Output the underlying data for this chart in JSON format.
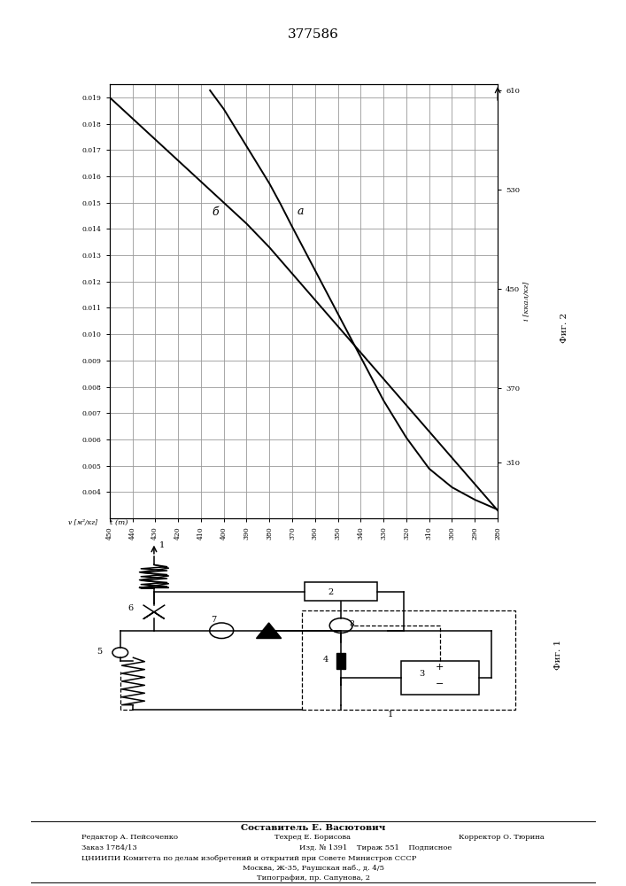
{
  "title": "377586",
  "graph": {
    "t_ticks": [
      450,
      440,
      430,
      420,
      410,
      400,
      390,
      380,
      370,
      360,
      350,
      340,
      330,
      320,
      310,
      300,
      290,
      280
    ],
    "v_ticks": [
      0.019,
      0.018,
      0.017,
      0.016,
      0.015,
      0.014,
      0.013,
      0.012,
      0.011,
      0.01,
      0.009,
      0.008,
      0.007,
      0.006,
      0.005,
      0.004
    ],
    "i_ticks": [
      610,
      530,
      450,
      370,
      310
    ],
    "t_range": [
      450,
      280
    ],
    "v_range": [
      0.019,
      0.004
    ],
    "i_range": [
      610,
      280
    ],
    "curve_b_t": [
      450,
      440,
      430,
      420,
      410,
      400,
      390,
      380,
      370,
      360,
      350,
      340,
      330,
      320,
      310,
      300,
      290,
      280
    ],
    "curve_b_v": [
      0.019,
      0.0182,
      0.0174,
      0.0166,
      0.0158,
      0.015,
      0.0142,
      0.0133,
      0.0123,
      0.0113,
      0.0103,
      0.0093,
      0.0083,
      0.0073,
      0.0063,
      0.0053,
      0.0043,
      0.0033
    ],
    "curve_a_t": [
      406,
      400,
      395,
      390,
      385,
      380,
      375,
      370,
      360,
      350,
      340,
      330,
      320,
      310,
      300,
      290,
      280
    ],
    "curve_a_i": [
      610,
      595,
      580,
      565,
      550,
      535,
      518,
      500,
      465,
      430,
      395,
      360,
      330,
      305,
      290,
      280,
      272
    ]
  },
  "fig1_label": "Фиг. 1",
  "fig2_label": "Фиг. 2",
  "footer": {
    "line1_center": "Составитель Е. Васютович",
    "line2_left": "Редактор А. Пейсоченко",
    "line2_center": "Техред Е. Борисова",
    "line2_right": "Корректор О. Тюрина",
    "line3_left": "Заказ 1784/13",
    "line3_center": "Изд. № 1391    Тираж 551    Подписное",
    "line4": "ЦНИИПИ Комитета по делам изобретений и открытий при Совете Министров СССР",
    "line5": "Москва, Ж-35, Раушская наб., д. 4/5",
    "line6": "Типография, пр. Сапунова, 2"
  }
}
